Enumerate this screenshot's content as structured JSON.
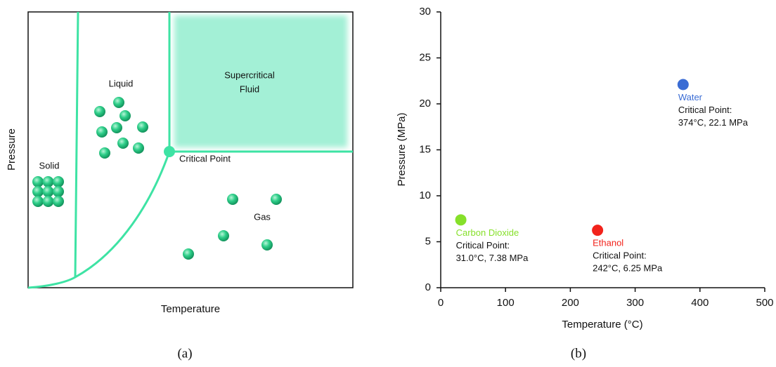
{
  "diagram": {
    "x_label": "Temperature",
    "y_label": "Pressure",
    "regions": [
      "Solid",
      "Liquid",
      "Gas"
    ],
    "supercritical": [
      "Supercritical",
      "Fluid"
    ],
    "critical_point": "Critical Point",
    "caption": "(a)"
  },
  "chart_data": {
    "type": "scatter",
    "x_label": "Temperature (°C)",
    "y_label": "Pressure (MPa)",
    "xlim": [
      0,
      500
    ],
    "xticks": [
      0,
      100,
      200,
      300,
      400,
      500
    ],
    "ylim": [
      0,
      30
    ],
    "yticks": [
      0,
      5,
      10,
      15,
      20,
      25,
      30
    ],
    "caption": "(b)",
    "series": [
      {
        "name": "Carbon Dioxide",
        "color": "#86e02a",
        "x": [
          31.0
        ],
        "values": [
          7.38
        ],
        "note": "Critical Point:",
        "value_labels": [
          "31.0°C, 7.38 MPa"
        ]
      },
      {
        "name": "Ethanol",
        "color": "#f2231b",
        "x": [
          242
        ],
        "values": [
          6.25
        ],
        "note": "Critical Point:",
        "value_labels": [
          "242°C, 6.25 MPa"
        ]
      },
      {
        "name": "Water",
        "color": "#3a6cd4",
        "x": [
          374
        ],
        "values": [
          22.1
        ],
        "note": "Critical Point:",
        "value_labels": [
          "374°C, 22.1 MPa"
        ]
      }
    ]
  }
}
